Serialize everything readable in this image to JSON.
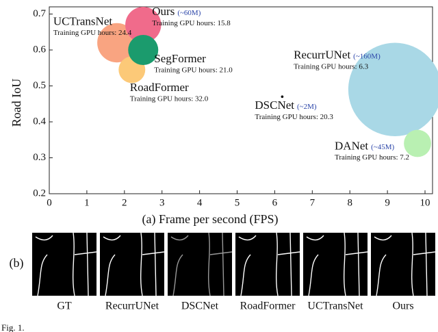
{
  "chart_data": {
    "type": "bubble",
    "xlabel": "(a) Frame per second (FPS)",
    "ylabel": "Road IoU",
    "xlim": [
      0,
      10.2
    ],
    "ylim": [
      0.2,
      0.72
    ],
    "xticks": [
      0,
      1,
      2,
      3,
      4,
      5,
      6,
      7,
      8,
      9,
      10
    ],
    "yticks": [
      0.2,
      0.3,
      0.4,
      0.5,
      0.6,
      0.7
    ],
    "grid": false,
    "points": [
      {
        "name": "RecurrUNet",
        "color": "#a9d8e6",
        "x": 9.2,
        "y": 0.49,
        "size": 160,
        "size_label": "(~160M)",
        "note": "Training GPU hours: 6.3"
      },
      {
        "name": "UCTransNet",
        "color": "#f9a481",
        "x": 1.8,
        "y": 0.62,
        "size": 66,
        "note": "Training GPU hours: 24.4"
      },
      {
        "name": "RoadFormer",
        "color": "#fcc978",
        "x": 2.2,
        "y": 0.545,
        "size": 44,
        "note": "Training GPU hours: 32.0"
      },
      {
        "name": "Ours",
        "color": "#f06b8b",
        "x": 2.5,
        "y": 0.67,
        "size": 60,
        "size_label": "(~60M)",
        "note": "Training GPU hours: 15.8"
      },
      {
        "name": "SegFormer",
        "color": "#1b9b6d",
        "x": 2.5,
        "y": 0.6,
        "size": 50,
        "note": "Training GPU hours: 21.0"
      },
      {
        "name": "DANet",
        "color": "#b9f0b2",
        "x": 9.8,
        "y": 0.34,
        "size": 45,
        "size_label": "(~45M)",
        "note": "Training GPU hours: 7.2"
      },
      {
        "name": "DSCNet",
        "color": "#111111",
        "x": 6.2,
        "y": 0.47,
        "size": 2,
        "size_label": "(~2M)",
        "note": "Training GPU hours: 20.3"
      }
    ]
  },
  "panel_b": {
    "label": "(b)",
    "captions": [
      "GT",
      "RecurrUNet",
      "DSCNet",
      "RoadFormer",
      "UCTransNet",
      "Ours"
    ]
  },
  "caption": "Fig. 1."
}
